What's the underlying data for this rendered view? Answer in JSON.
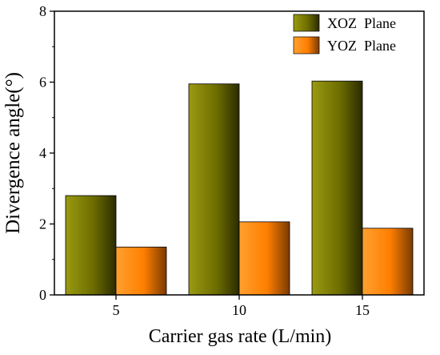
{
  "chart_data": {
    "type": "bar",
    "title": "",
    "xlabel": "Carrier gas rate (L/min)",
    "ylabel": "Divergence angle(°)",
    "categories": [
      "5",
      "10",
      "15"
    ],
    "series": [
      {
        "name": "XOZ  Plane",
        "values": [
          2.8,
          5.95,
          6.03
        ],
        "color": "#808000"
      },
      {
        "name": "YOZ  Plane",
        "values": [
          1.35,
          2.06,
          1.88
        ],
        "color": "#ff8000"
      }
    ],
    "ylim": [
      0,
      8
    ],
    "yticks": [
      "0",
      "2",
      "4",
      "6",
      "8"
    ],
    "grid": false,
    "legend_position": "top-right"
  }
}
